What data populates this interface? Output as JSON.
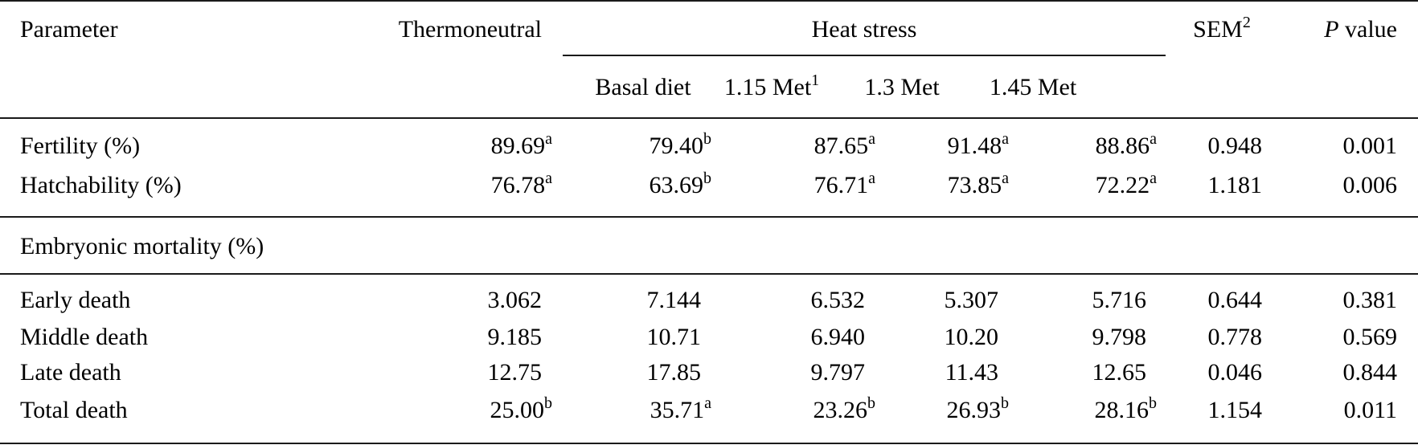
{
  "table": {
    "headers": {
      "parameter": "Parameter",
      "thermoneutral": "Thermoneutral",
      "heat_stress": "Heat stress",
      "sub": [
        {
          "label": "Basal diet",
          "sup": ""
        },
        {
          "label": "1.15 Met",
          "sup": "1"
        },
        {
          "label": "1.3 Met",
          "sup": ""
        },
        {
          "label": "1.45 Met",
          "sup": ""
        }
      ],
      "sem": {
        "label": "SEM",
        "sup": "2"
      },
      "p_value": {
        "italic": "P",
        "rest": " value"
      }
    },
    "section1": [
      {
        "label": "Fertility (%)",
        "values": [
          {
            "v": "89.69",
            "s": "a"
          },
          {
            "v": "79.40",
            "s": "b"
          },
          {
            "v": "87.65",
            "s": "a"
          },
          {
            "v": "91.48",
            "s": "a"
          },
          {
            "v": "88.86",
            "s": "a"
          }
        ],
        "sem": "0.948",
        "p": "0.001"
      },
      {
        "label": "Hatchability (%)",
        "values": [
          {
            "v": "76.78",
            "s": "a"
          },
          {
            "v": "63.69",
            "s": "b"
          },
          {
            "v": "76.71",
            "s": "a"
          },
          {
            "v": "73.85",
            "s": "a"
          },
          {
            "v": "72.22",
            "s": "a"
          }
        ],
        "sem": "1.181",
        "p": "0.006"
      }
    ],
    "section_heading": "Embryonic mortality (%)",
    "section2": [
      {
        "label": "Early death",
        "values": [
          {
            "v": "3.062",
            "s": ""
          },
          {
            "v": "7.144",
            "s": ""
          },
          {
            "v": "6.532",
            "s": ""
          },
          {
            "v": "5.307",
            "s": ""
          },
          {
            "v": "5.716",
            "s": ""
          }
        ],
        "sem": "0.644",
        "p": "0.381"
      },
      {
        "label": "Middle death",
        "values": [
          {
            "v": "9.185",
            "s": ""
          },
          {
            "v": "10.71",
            "s": ""
          },
          {
            "v": "6.940",
            "s": ""
          },
          {
            "v": "10.20",
            "s": ""
          },
          {
            "v": "9.798",
            "s": ""
          }
        ],
        "sem": "0.778",
        "p": "0.569"
      },
      {
        "label": "Late death",
        "values": [
          {
            "v": "12.75",
            "s": ""
          },
          {
            "v": "17.85",
            "s": ""
          },
          {
            "v": "9.797",
            "s": ""
          },
          {
            "v": "11.43",
            "s": ""
          },
          {
            "v": "12.65",
            "s": ""
          }
        ],
        "sem": "0.046",
        "p": "0.844"
      },
      {
        "label": "Total death",
        "values": [
          {
            "v": "25.00",
            "s": "b"
          },
          {
            "v": "35.71",
            "s": "a"
          },
          {
            "v": "23.26",
            "s": "b"
          },
          {
            "v": "26.93",
            "s": "b"
          },
          {
            "v": "28.16",
            "s": "b"
          }
        ],
        "sem": "1.154",
        "p": "0.011"
      }
    ]
  }
}
